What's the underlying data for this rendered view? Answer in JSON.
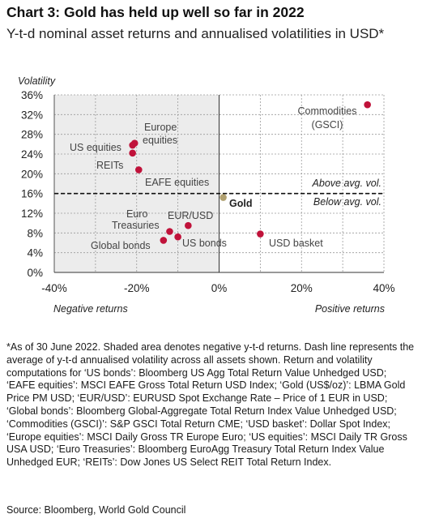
{
  "header": {
    "title": "Chart 3: Gold has held up well so far in 2022",
    "subtitle": "Y-t-d nominal asset returns and annualised volatilities in USD*"
  },
  "chart_data": {
    "type": "scatter",
    "title": "",
    "ylabel": "Volatility",
    "xlabel_left": "Negative returns",
    "xlabel_right": "Positive returns",
    "xlim": [
      -40,
      40
    ],
    "ylim": [
      0,
      36
    ],
    "x_ticks": [
      "-40%",
      "-20%",
      "0%",
      "20%",
      "40%"
    ],
    "y_ticks": [
      "0%",
      "4%",
      "8%",
      "12%",
      "16%",
      "20%",
      "24%",
      "28%",
      "32%",
      "36%"
    ],
    "x_tick_values": [
      -40,
      -20,
      0,
      20,
      40
    ],
    "y_tick_values": [
      0,
      4,
      8,
      12,
      16,
      20,
      24,
      28,
      32,
      36
    ],
    "grid": true,
    "shaded_region": "negative returns",
    "average_volatility": 16,
    "average_labels": {
      "above": "Above avg. vol.",
      "below": "Below avg. vol."
    },
    "points": [
      {
        "label": "Commodities (GSCI)",
        "x": 36,
        "y": 34,
        "color": "#c0123a"
      },
      {
        "label": "Europe equities",
        "x": -20.5,
        "y": 26.2,
        "color": "#c0123a"
      },
      {
        "label": "US equities",
        "x": -21,
        "y": 25.8,
        "color": "#c0123a"
      },
      {
        "label": "REITs",
        "x": -21,
        "y": 24.2,
        "color": "#c0123a"
      },
      {
        "label": "EAFE equities",
        "x": -19.5,
        "y": 20.8,
        "color": "#c0123a"
      },
      {
        "label": "Gold",
        "x": 1,
        "y": 15.2,
        "color": "#b0a070"
      },
      {
        "label": "EUR/USD",
        "x": -7.5,
        "y": 9.5,
        "color": "#c0123a"
      },
      {
        "label": "Euro Treasuries",
        "x": -12,
        "y": 8.3,
        "color": "#c0123a"
      },
      {
        "label": "US bonds",
        "x": -10,
        "y": 7.2,
        "color": "#c0123a"
      },
      {
        "label": "Global bonds",
        "x": -13.5,
        "y": 6.5,
        "color": "#c0123a"
      },
      {
        "label": "USD basket",
        "x": 10,
        "y": 7.8,
        "color": "#c0123a"
      }
    ],
    "point_labels": {
      "commodities": [
        "Commodities",
        "(GSCI)"
      ],
      "europe": [
        "Europe",
        "equities"
      ],
      "us_equities": "US equities",
      "reits": "REITs",
      "eafe": "EAFE equities",
      "gold": "Gold",
      "eurusd": "EUR/USD",
      "euro_treasuries": [
        "Euro",
        "Treasuries"
      ],
      "us_bonds": "US bonds",
      "global_bonds": "Global bonds",
      "usd_basket": "USD basket"
    },
    "colors": {
      "accent": "#c0123a",
      "gold": "#b0a070",
      "shade": "#ececec"
    }
  },
  "footnote": "*As of 30 June 2022. Shaded area denotes negative y-t-d returns. Dash line represents the average of y-t-d annualised volatility across all assets shown. Return and volatility computations for ‘US bonds’: Bloomberg US Agg Total Return Value Unhedged USD; ‘EAFE equities’: MSCI EAFE Gross Total Return USD Index; ‘Gold (US$/oz)’: LBMA Gold Price PM USD; ‘EUR/USD’: EURUSD Spot Exchange Rate – Price of 1 EUR in USD; ‘Global bonds’: Bloomberg Global-Aggregate Total Return Index Value Unhedged USD; ‘Commodities (GSCI)’: S&P GSCI Total Return CME; ‘USD basket’: Dollar Spot Index; ‘Europe equities’: MSCI Daily Gross TR Europe Euro; ‘US equities’: MSCI Daily TR Gross USA USD; ‘Euro Treasuries’: Bloomberg EuroAgg Treasury Total Return Index Value Unhedged EUR; ‘REITs’: Dow Jones US Select REIT Total Return Index.",
  "source": "Source: Bloomberg, World Gold Council"
}
